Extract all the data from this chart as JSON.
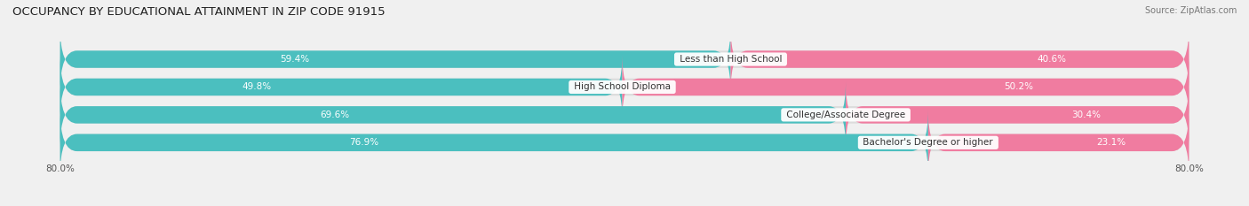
{
  "title": "OCCUPANCY BY EDUCATIONAL ATTAINMENT IN ZIP CODE 91915",
  "source": "Source: ZipAtlas.com",
  "categories": [
    "Less than High School",
    "High School Diploma",
    "College/Associate Degree",
    "Bachelor's Degree or higher"
  ],
  "owner_values": [
    59.4,
    49.8,
    69.6,
    76.9
  ],
  "renter_values": [
    40.6,
    50.2,
    30.4,
    23.1
  ],
  "owner_color": "#4BBFBF",
  "renter_color": "#F07CA0",
  "background_color": "#f0f0f0",
  "bar_background": "#dcdcdc",
  "bar_height": 0.62,
  "title_fontsize": 9.5,
  "label_fontsize": 7.5,
  "pct_fontsize": 7.5,
  "tick_fontsize": 7.5,
  "legend_fontsize": 7.5,
  "source_fontsize": 7
}
